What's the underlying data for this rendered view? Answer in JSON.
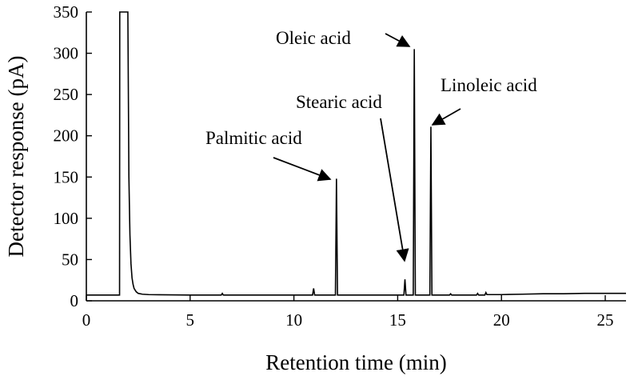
{
  "chart_data": {
    "type": "line",
    "title": "",
    "xlabel": "Retention time (min)",
    "ylabel": "Detector response (pA)",
    "xlim": [
      0,
      26
    ],
    "ylim": [
      0,
      350
    ],
    "xticks": [
      0,
      5,
      10,
      15,
      20,
      25
    ],
    "yticks": [
      0,
      50,
      100,
      150,
      200,
      250,
      300,
      350
    ],
    "grid": false,
    "legend": "none",
    "series": [
      {
        "x": [
          0.0,
          1.0,
          1.6,
          1.61,
          1.62,
          2.0,
          2.05,
          2.1,
          2.15,
          2.2,
          2.25,
          2.3,
          2.4,
          2.5,
          2.7,
          3.0,
          3.5,
          4.0,
          5.0,
          6.0,
          6.5,
          6.55,
          6.6,
          7.0,
          8.0,
          9.0,
          10.0,
          10.9,
          10.95,
          11.0,
          11.1,
          12.0,
          12.05,
          12.1,
          12.15,
          12.2,
          13.0,
          14.0,
          15.0,
          15.3,
          15.35,
          15.4,
          15.45,
          15.7,
          15.75,
          15.8,
          15.85,
          15.9,
          16.2,
          16.5,
          16.55,
          16.6,
          16.65,
          16.7,
          17.5,
          17.55,
          17.6,
          18.5,
          18.8,
          18.85,
          18.9,
          19.2,
          19.25,
          19.3,
          20.0,
          21.0,
          22.0,
          23.0,
          24.0,
          25.0,
          26.0
        ],
        "values": [
          7.0,
          7.0,
          7.0,
          350.0,
          350.0,
          350.0,
          150.0,
          80.0,
          45.0,
          28.0,
          20.0,
          15.0,
          11.0,
          9.0,
          8.0,
          7.5,
          7.3,
          7.2,
          7.0,
          7.0,
          7.0,
          9.0,
          7.0,
          7.0,
          7.0,
          7.0,
          7.0,
          7.0,
          15.0,
          7.0,
          7.0,
          7.0,
          148.0,
          7.0,
          7.0,
          7.0,
          7.0,
          7.0,
          7.0,
          7.0,
          26.0,
          7.0,
          7.0,
          7.0,
          7.0,
          305.0,
          7.0,
          7.0,
          7.0,
          7.0,
          7.0,
          211.0,
          7.0,
          7.0,
          7.0,
          8.5,
          7.0,
          7.0,
          7.0,
          9.0,
          7.0,
          7.0,
          10.0,
          7.5,
          7.5,
          8.0,
          8.5,
          8.5,
          9.0,
          9.0,
          9.0
        ]
      }
    ],
    "annotations": [
      {
        "text": "Palmitic acid",
        "x": 12.1,
        "y": 148
      },
      {
        "text": "Stearic acid",
        "x": 15.35,
        "y": 26
      },
      {
        "text": "Oleic acid",
        "x": 15.8,
        "y": 305
      },
      {
        "text": "Linoleic acid",
        "x": 16.6,
        "y": 211
      }
    ]
  }
}
